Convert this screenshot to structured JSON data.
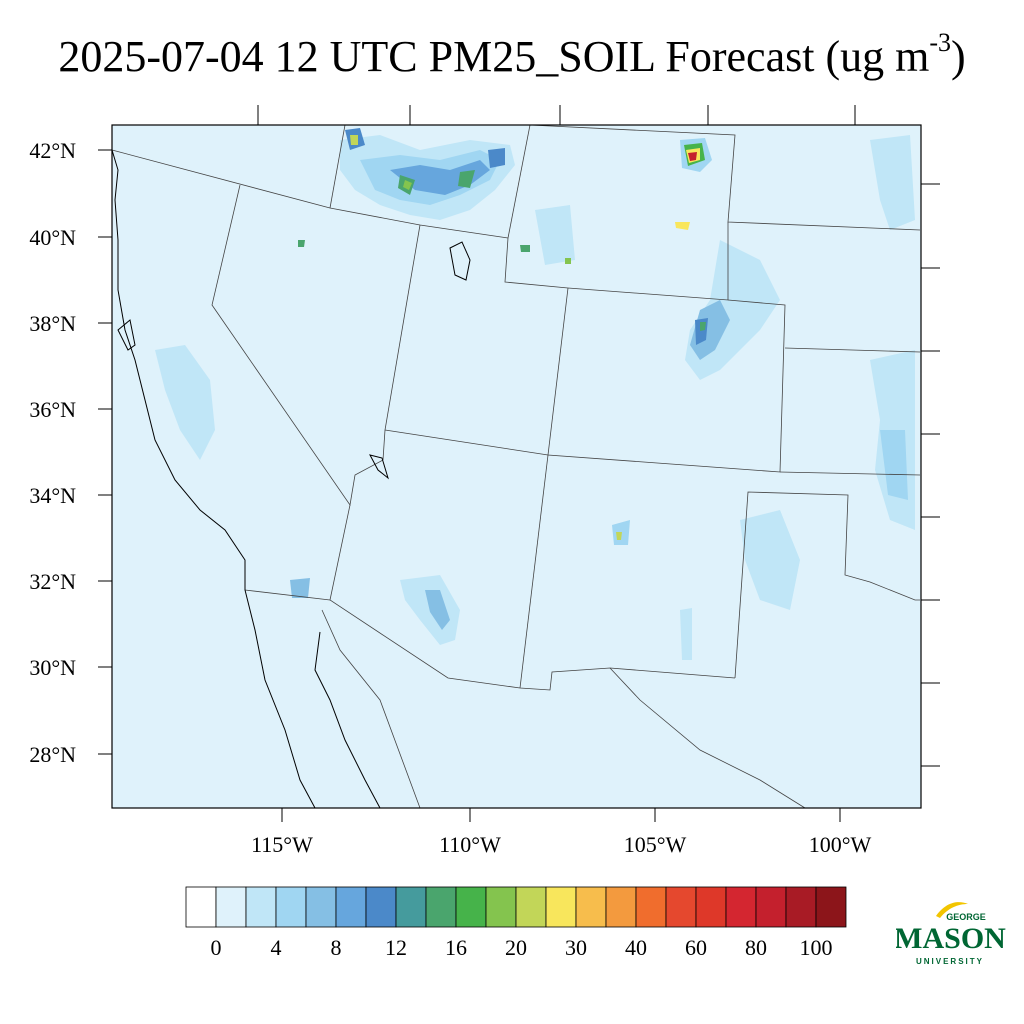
{
  "title": {
    "main": "2025-07-04 12 UTC PM25_SOIL Forecast (ug m",
    "exponent": "-3",
    "close": ")"
  },
  "map": {
    "lat_labels": [
      "42°N",
      "40°N",
      "38°N",
      "36°N",
      "34°N",
      "32°N",
      "30°N",
      "28°N"
    ],
    "lon_labels": [
      "115°W",
      "110°W",
      "105°W",
      "100°W"
    ],
    "background_color": "#dff2fb",
    "border_color": "#000000"
  },
  "colorbar": {
    "colors": [
      "#ffffff",
      "#dff2fb",
      "#c0e6f7",
      "#a0d6f2",
      "#85bfe4",
      "#66a6dd",
      "#4b89c9",
      "#459b9d",
      "#4aa56d",
      "#46b34a",
      "#84c44e",
      "#c2d658",
      "#f8e65c",
      "#f7bd4c",
      "#f39a3e",
      "#f06d2d",
      "#e5482e",
      "#de3829",
      "#d42630",
      "#c4202d",
      "#a81b25",
      "#8c151a"
    ],
    "labels": [
      "0",
      "4",
      "8",
      "12",
      "16",
      "20",
      "30",
      "40",
      "60",
      "80",
      "100"
    ]
  },
  "logo": {
    "line1": "GEORGE",
    "line2": "MASON",
    "line3": "UNIVERSITY",
    "color": "#006633",
    "accent": "#f2c500"
  }
}
